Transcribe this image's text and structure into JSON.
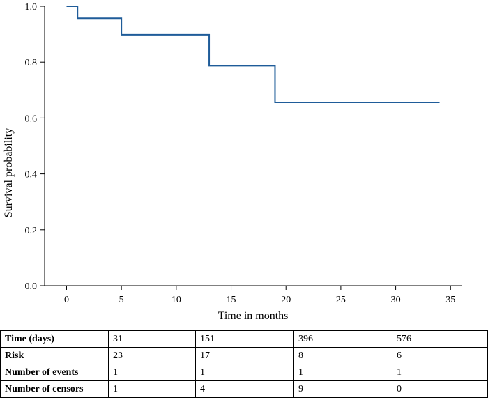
{
  "chart_data": {
    "type": "line",
    "xlabel": "Time in months",
    "ylabel": "Survival probability",
    "xlim": [
      -2,
      36
    ],
    "ylim": [
      0,
      1
    ],
    "xticks": [
      0,
      5,
      10,
      15,
      20,
      25,
      30,
      35
    ],
    "yticks": [
      0,
      0.2,
      0.4,
      0.6,
      0.8,
      1
    ],
    "ytick_labels": [
      "0.0",
      "0.2",
      "0.4",
      "0.6",
      "0.8",
      "1.0"
    ],
    "grid": false,
    "line_color": "#1f5c99",
    "series": [
      {
        "step": true,
        "x": [
          0,
          1,
          5,
          13,
          19,
          34
        ],
        "y": [
          1.0,
          0.957,
          0.898,
          0.787,
          0.656,
          0.656
        ]
      }
    ]
  },
  "risk_table": {
    "rows": [
      {
        "label": "Time (days)",
        "values": [
          "31",
          "151",
          "396",
          "576"
        ]
      },
      {
        "label": "Risk",
        "values": [
          "23",
          "17",
          "8",
          "6"
        ]
      },
      {
        "label": "Number of events",
        "values": [
          "1",
          "1",
          "1",
          "1"
        ]
      },
      {
        "label": "Number of censors",
        "values": [
          "1",
          "4",
          "9",
          "0"
        ]
      }
    ]
  }
}
